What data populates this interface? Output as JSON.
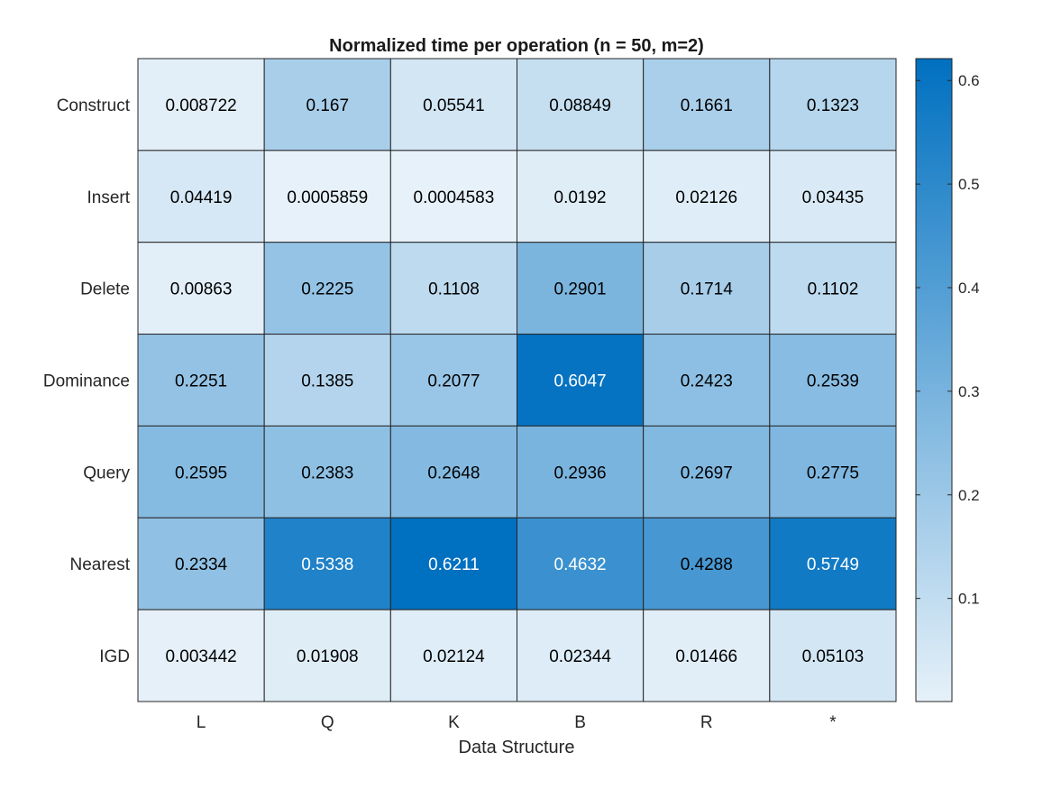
{
  "chart_data": {
    "type": "heatmap",
    "title": "Normalized time per operation (n = 50, m=2)",
    "xlabel": "Data Structure",
    "ylabel": "",
    "x_categories": [
      "L",
      "Q",
      "K",
      "B",
      "R",
      "*"
    ],
    "y_categories": [
      "Construct",
      "Insert",
      "Delete",
      "Dominance",
      "Query",
      "Nearest",
      "IGD"
    ],
    "values": [
      [
        0.008722,
        0.167,
        0.05541,
        0.08849,
        0.1661,
        0.1323
      ],
      [
        0.04419,
        0.0005859,
        0.0004583,
        0.0192,
        0.02126,
        0.03435
      ],
      [
        0.00863,
        0.2225,
        0.1108,
        0.2901,
        0.1714,
        0.1102
      ],
      [
        0.2251,
        0.1385,
        0.2077,
        0.6047,
        0.2423,
        0.2539
      ],
      [
        0.2595,
        0.2383,
        0.2648,
        0.2936,
        0.2697,
        0.2775
      ],
      [
        0.2334,
        0.5338,
        0.6211,
        0.4632,
        0.4288,
        0.5749
      ],
      [
        0.003442,
        0.01908,
        0.02124,
        0.02344,
        0.01466,
        0.05103
      ]
    ],
    "cell_labels": [
      [
        "0.008722",
        "0.167",
        "0.05541",
        "0.08849",
        "0.1661",
        "0.1323"
      ],
      [
        "0.04419",
        "0.0005859",
        "0.0004583",
        "0.0192",
        "0.02126",
        "0.03435"
      ],
      [
        "0.00863",
        "0.2225",
        "0.1108",
        "0.2901",
        "0.1714",
        "0.1102"
      ],
      [
        "0.2251",
        "0.1385",
        "0.2077",
        "0.6047",
        "0.2423",
        "0.2539"
      ],
      [
        "0.2595",
        "0.2383",
        "0.2648",
        "0.2936",
        "0.2697",
        "0.2775"
      ],
      [
        "0.2334",
        "0.5338",
        "0.6211",
        "0.4632",
        "0.4288",
        "0.5749"
      ],
      [
        "0.003442",
        "0.01908",
        "0.02124",
        "0.02344",
        "0.01466",
        "0.05103"
      ]
    ],
    "colorbar": {
      "ticks": [
        0.1,
        0.2,
        0.3,
        0.4,
        0.5,
        0.6
      ],
      "tick_labels": [
        "0.1",
        "0.2",
        "0.3",
        "0.4",
        "0.5",
        "0.6"
      ],
      "range": [
        0.0004583,
        0.6211
      ]
    },
    "colormap": {
      "low": "#e6f1f9",
      "high": "#0070c0"
    },
    "text_colors": {
      "dark": "#000000",
      "light": "#ffffff"
    },
    "grid": true,
    "legend": "colorbar-right"
  }
}
